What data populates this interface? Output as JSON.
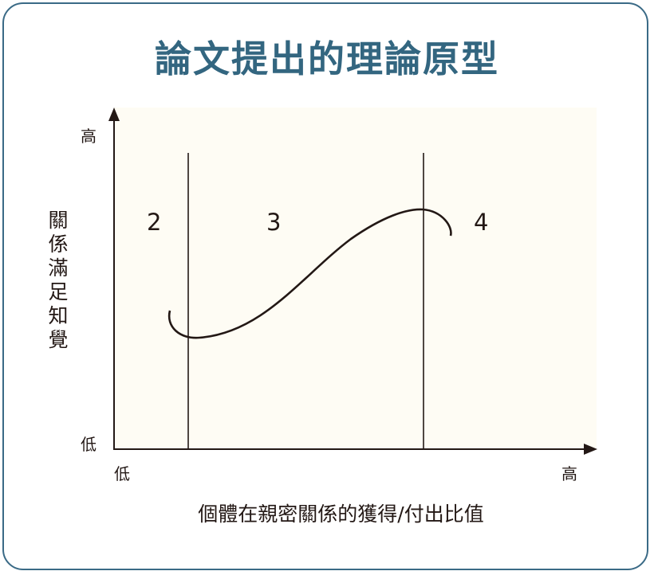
{
  "title": "論文提出的理論原型",
  "y_axis": {
    "label": "關係滿足知覺",
    "high": "高",
    "low": "低"
  },
  "x_axis": {
    "label": "個體在親密關係的獲得/付出比值",
    "low": "低",
    "high": "高"
  },
  "regions": [
    "2",
    "3",
    "4"
  ],
  "colors": {
    "title": "#336680",
    "border": "#3a6a86",
    "plot_background": "#fefcf4",
    "line": "#231815"
  }
}
